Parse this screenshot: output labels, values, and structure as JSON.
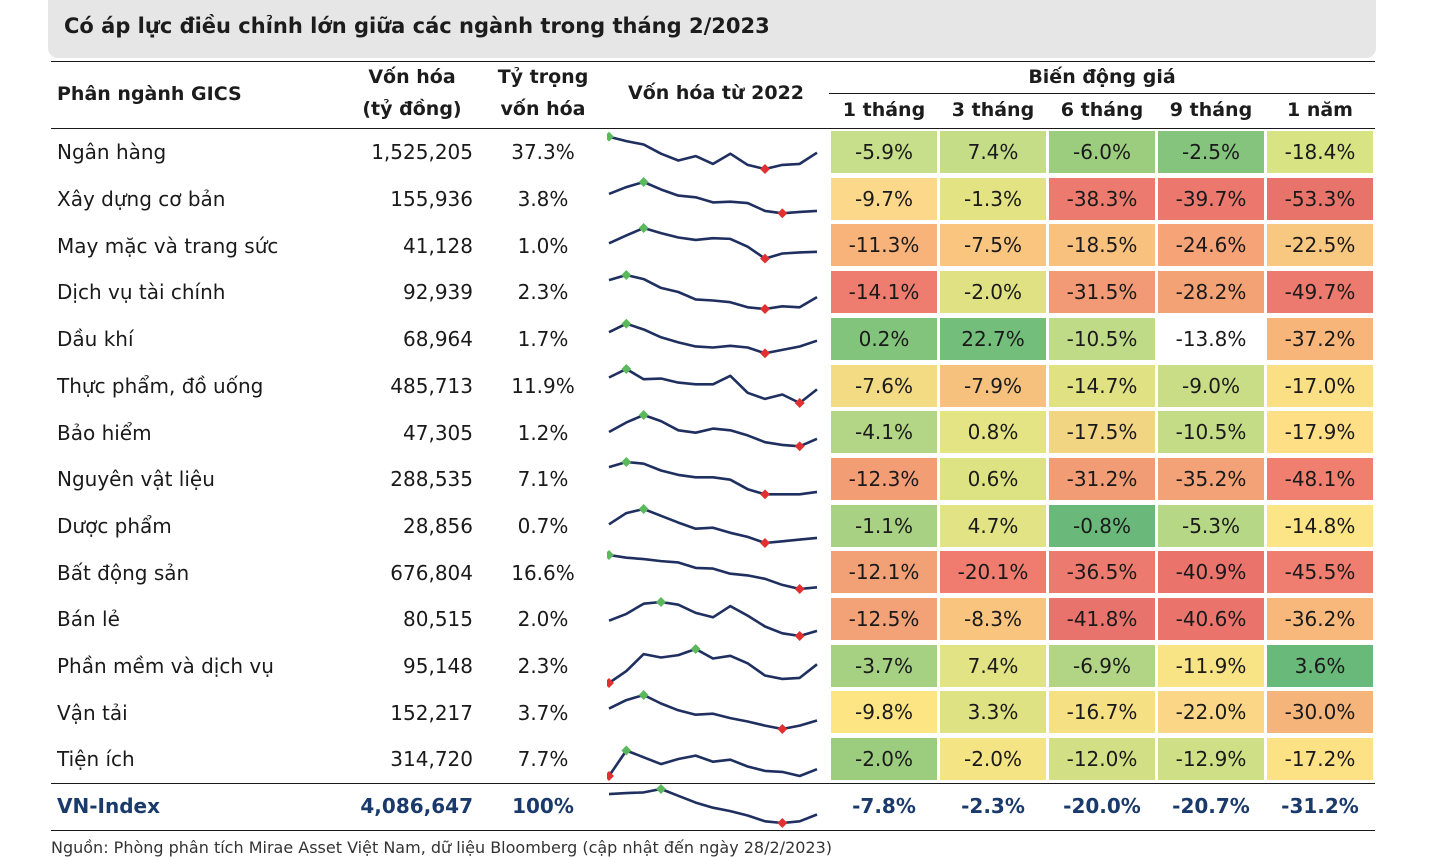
{
  "title": "Có áp lực điều chỉnh lớn giữa các ngành trong tháng 2/2023",
  "headers": {
    "sector": "Phân ngành GICS",
    "cap_line1": "Vốn hóa",
    "cap_line2": "(tỷ đồng)",
    "weight_line1": "Tỷ trọng",
    "weight_line2": "vốn hóa",
    "spark": "Vốn hóa từ 2022",
    "price_group": "Biến động giá",
    "periods": [
      "1 tháng",
      "3 tháng",
      "6 tháng",
      "9 tháng",
      "1 năm"
    ]
  },
  "rows": [
    {
      "name": "Ngân hàng",
      "cap": "1,525,205",
      "weight": "37.3%",
      "changes": [
        "-5.9%",
        "7.4%",
        "-6.0%",
        "-2.5%",
        "-18.4%"
      ],
      "spark": [
        0.95,
        0.82,
        0.72,
        0.45,
        0.25,
        0.38,
        0.15,
        0.45,
        0.12,
        0.0,
        0.12,
        0.15,
        0.48
      ]
    },
    {
      "name": "Xây dựng cơ bản",
      "cap": "155,936",
      "weight": "3.8%",
      "changes": [
        "-9.7%",
        "-1.3%",
        "-38.3%",
        "-39.7%",
        "-53.3%"
      ],
      "spark": [
        0.65,
        0.85,
        1.0,
        0.78,
        0.6,
        0.55,
        0.4,
        0.42,
        0.38,
        0.15,
        0.08,
        0.12,
        0.15
      ]
    },
    {
      "name": "May mặc và trang sức",
      "cap": "41,128",
      "weight": "1.0%",
      "changes": [
        "-11.3%",
        "-7.5%",
        "-18.5%",
        "-24.6%",
        "-22.5%"
      ],
      "spark": [
        0.55,
        0.78,
        1.0,
        0.85,
        0.72,
        0.65,
        0.7,
        0.68,
        0.45,
        0.1,
        0.25,
        0.28,
        0.3
      ]
    },
    {
      "name": "Dịch vụ tài chính",
      "cap": "92,939",
      "weight": "2.3%",
      "changes": [
        "-14.1%",
        "-2.0%",
        "-31.5%",
        "-28.2%",
        "-49.7%"
      ],
      "spark": [
        0.85,
        1.0,
        0.88,
        0.62,
        0.5,
        0.28,
        0.25,
        0.2,
        0.05,
        0.0,
        0.08,
        0.05,
        0.35
      ]
    },
    {
      "name": "Dầu khí",
      "cap": "68,964",
      "weight": "1.7%",
      "changes": [
        "0.2%",
        "22.7%",
        "-10.5%",
        "-13.8%",
        "-37.2%"
      ],
      "spark": [
        0.7,
        0.95,
        0.78,
        0.55,
        0.4,
        0.28,
        0.25,
        0.3,
        0.25,
        0.08,
        0.18,
        0.28,
        0.45
      ]
    },
    {
      "name": "Thực phẩm, đồ uống",
      "cap": "485,713",
      "weight": "11.9%",
      "changes": [
        "-7.6%",
        "-7.9%",
        "-14.7%",
        "-9.0%",
        "-17.0%"
      ],
      "spark": [
        0.75,
        1.0,
        0.7,
        0.72,
        0.6,
        0.55,
        0.55,
        0.8,
        0.3,
        0.12,
        0.25,
        0.0,
        0.4
      ]
    },
    {
      "name": "Bảo hiểm",
      "cap": "47,305",
      "weight": "1.2%",
      "changes": [
        "-4.1%",
        "0.8%",
        "-17.5%",
        "-10.5%",
        "-17.9%"
      ],
      "spark": [
        0.5,
        0.78,
        1.0,
        0.82,
        0.55,
        0.48,
        0.6,
        0.55,
        0.4,
        0.2,
        0.12,
        0.08,
        0.3
      ]
    },
    {
      "name": "Nguyên vật liệu",
      "cap": "288,535",
      "weight": "7.1%",
      "changes": [
        "-12.3%",
        "0.6%",
        "-31.2%",
        "-35.2%",
        "-48.1%"
      ],
      "spark": [
        0.85,
        1.0,
        0.95,
        0.75,
        0.62,
        0.55,
        0.55,
        0.48,
        0.2,
        0.05,
        0.05,
        0.05,
        0.12
      ]
    },
    {
      "name": "Dược phẩm",
      "cap": "28,856",
      "weight": "0.7%",
      "changes": [
        "-1.1%",
        "4.7%",
        "-0.8%",
        "-5.3%",
        "-14.8%"
      ],
      "spark": [
        0.55,
        0.88,
        1.0,
        0.8,
        0.6,
        0.42,
        0.45,
        0.3,
        0.18,
        0.0,
        0.05,
        0.1,
        0.15
      ]
    },
    {
      "name": "Bất động sản",
      "cap": "676,804",
      "weight": "16.6%",
      "changes": [
        "-12.1%",
        "-20.1%",
        "-36.5%",
        "-40.9%",
        "-45.5%"
      ],
      "spark": [
        1.0,
        0.92,
        0.88,
        0.82,
        0.78,
        0.62,
        0.6,
        0.45,
        0.4,
        0.3,
        0.12,
        0.0,
        0.05
      ]
    },
    {
      "name": "Bán lẻ",
      "cap": "80,515",
      "weight": "2.0%",
      "changes": [
        "-12.5%",
        "-8.3%",
        "-41.8%",
        "-40.6%",
        "-36.2%"
      ],
      "spark": [
        0.45,
        0.65,
        0.95,
        1.0,
        0.92,
        0.68,
        0.55,
        0.88,
        0.6,
        0.28,
        0.08,
        0.0,
        0.15
      ]
    },
    {
      "name": "Phần mềm và dịch vụ",
      "cap": "95,148",
      "weight": "2.3%",
      "changes": [
        "-3.7%",
        "7.4%",
        "-6.9%",
        "-11.9%",
        "3.6%"
      ],
      "spark": [
        0.0,
        0.35,
        0.85,
        0.75,
        0.82,
        1.0,
        0.72,
        0.8,
        0.58,
        0.22,
        0.12,
        0.15,
        0.55
      ]
    },
    {
      "name": "Vận tải",
      "cap": "152,217",
      "weight": "3.7%",
      "changes": [
        "-9.8%",
        "3.3%",
        "-16.7%",
        "-22.0%",
        "-30.0%"
      ],
      "spark": [
        0.6,
        0.85,
        1.0,
        0.75,
        0.55,
        0.42,
        0.45,
        0.32,
        0.22,
        0.1,
        0.0,
        0.1,
        0.25
      ]
    },
    {
      "name": "Tiện ích",
      "cap": "314,720",
      "weight": "7.7%",
      "changes": [
        "-2.0%",
        "-2.0%",
        "-12.0%",
        "-12.9%",
        "-17.2%"
      ],
      "spark": [
        0.0,
        0.75,
        0.55,
        0.35,
        0.5,
        0.6,
        0.42,
        0.48,
        0.28,
        0.15,
        0.12,
        0.0,
        0.2
      ]
    }
  ],
  "total": {
    "name": "VN-Index",
    "cap": "4,086,647",
    "weight": "100%",
    "changes": [
      "-7.8%",
      "-2.3%",
      "-20.0%",
      "-20.7%",
      "-31.2%"
    ],
    "spark": [
      0.85,
      0.88,
      0.9,
      1.0,
      0.8,
      0.6,
      0.45,
      0.35,
      0.22,
      0.05,
      0.0,
      0.05,
      0.25
    ]
  },
  "cell_colors": [
    [
      "#c7de8b",
      "#c6dd88",
      "#9ccd7e",
      "#84c47c",
      "#d8e384"
    ],
    [
      "#fcd88a",
      "#e3e384",
      "#ed7a6e",
      "#eb776d",
      "#e8736b"
    ],
    [
      "#f8b37a",
      "#f9c57f",
      "#f8c17e",
      "#f5a377",
      "#f8c780"
    ],
    [
      "#ef7d6f",
      "#dfe183",
      "#f19a75",
      "#f3a276",
      "#ec7a6e"
    ],
    [
      "#83c47c",
      "#74be7b",
      "#c0db88",
      "#ced f87",
      "#f7b57a"
    ],
    [
      "#f3db84",
      "#f6c07d",
      "#e0e183",
      "#c9dd87",
      "#fadf85"
    ],
    [
      "#b3d686",
      "#e4e484",
      "#f1d583",
      "#c5dc87",
      "#fedf86"
    ],
    [
      "#f39d75",
      "#dde283",
      "#f19c75",
      "#f3a176",
      "#f17f70"
    ],
    [
      "#a8d183",
      "#e1e384",
      "#6ab97a",
      "#b6d785",
      "#fbe586"
    ],
    [
      "#f2a176",
      "#ef7c6f",
      "#ec7a6e",
      "#ea746c",
      "#f07e70"
    ],
    [
      "#f2a276",
      "#f9c57e",
      "#e8736c",
      "#ea746c",
      "#f8b87b"
    ],
    [
      "#a6d082",
      "#e1e384",
      "#b2d585",
      "#f8e485",
      "#69b97a"
    ],
    [
      "#fde584",
      "#dfe283",
      "#f6e084",
      "#fbd687",
      "#f5b479"
    ],
    [
      "#9ccd7e",
      "#f4e484",
      "#d2df84",
      "#cfdf86",
      "#fde185"
    ]
  ],
  "source": "Nguồn: Phòng phân tích Mirae Asset Việt Nam, dữ liệu Bloomberg (cập nhật đến ngày 28/2/2023)"
}
